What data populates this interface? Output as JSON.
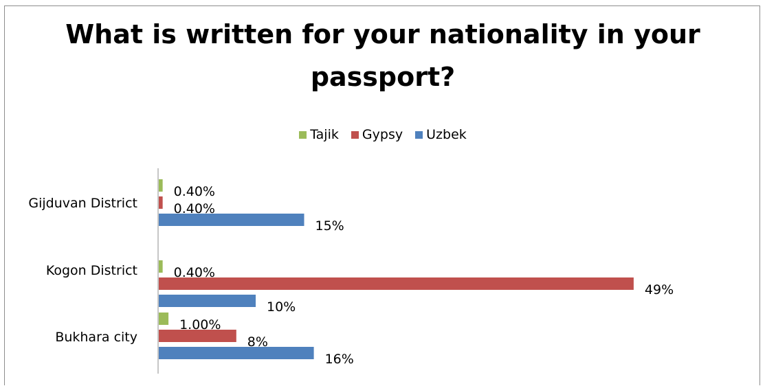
{
  "chart_data": {
    "type": "bar",
    "orientation": "horizontal",
    "title": "What is written for your nationality in your passport?",
    "title_lines": [
      "What is written for your nationality in your",
      "passport?"
    ],
    "categories": [
      "Gijduvan District",
      "Kogon District",
      "Bukhara city"
    ],
    "series": [
      {
        "name": "Tajik",
        "color": "#9bbb59",
        "values": [
          0.4,
          0.4,
          1.0
        ],
        "labels": [
          "0.40%",
          "0.40%",
          "1.00%"
        ]
      },
      {
        "name": "Gypsy",
        "color": "#c0504d",
        "values": [
          0.4,
          49,
          8
        ],
        "labels": [
          "0.40%",
          "49%",
          "8%"
        ]
      },
      {
        "name": "Uzbek",
        "color": "#4f81bd",
        "values": [
          15,
          10,
          16
        ],
        "labels": [
          "15%",
          "10%",
          "16%"
        ]
      }
    ],
    "legend_order": [
      "Tajik",
      "Gypsy",
      "Uzbek"
    ],
    "legend_position": "top",
    "xlim": [
      0,
      50
    ],
    "grid": false
  }
}
